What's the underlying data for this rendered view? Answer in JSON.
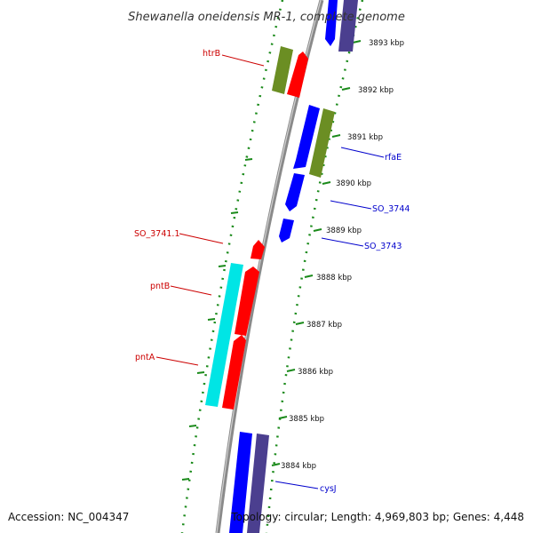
{
  "title": "Shewanella oneidensis MR-1, complete genome",
  "footer": {
    "accession": "Accession: NC_004347",
    "topology": "Topology: circular; Length: 4,969,803 bp; Genes: 4,448"
  },
  "colors": {
    "backbone": "#8a8a8a",
    "ticks": "#1a8a1a",
    "forward_cds": "#ff0000",
    "reverse_cds": "#0000ff",
    "reverse_cds_alt": "#4b3f8f",
    "rna_forward": "#6b8e23",
    "rna_reverse": "#00e5e5",
    "label_forward": "#cc0000",
    "label_reverse": "#0000cc"
  },
  "ruler": [
    "3893 kbp",
    "3892 kbp",
    "3891 kbp",
    "3890 kbp",
    "3889 kbp",
    "3888 kbp",
    "3887 kbp",
    "3886 kbp",
    "3885 kbp",
    "3884 kbp"
  ],
  "genes": [
    {
      "label": "htrB",
      "strand": "forward"
    },
    {
      "label": "rfaE",
      "strand": "reverse"
    },
    {
      "label": "SO_3744",
      "strand": "reverse"
    },
    {
      "label": "SO_3743",
      "strand": "reverse"
    },
    {
      "label": "SO_3741.1",
      "strand": "forward"
    },
    {
      "label": "pntB",
      "strand": "forward"
    },
    {
      "label": "pntA",
      "strand": "forward"
    },
    {
      "label": "cysJ",
      "strand": "reverse"
    }
  ]
}
